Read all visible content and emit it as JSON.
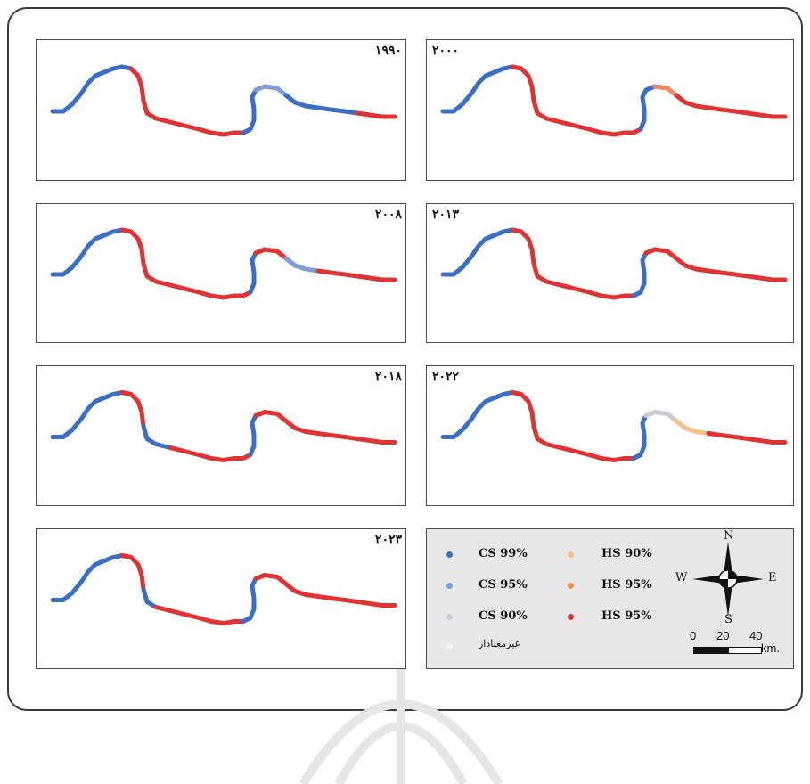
{
  "panels": [
    {
      "year": "۱۹۹۰",
      "id": "p1990"
    },
    {
      "year": "۲۰۰۰",
      "id": "p2000"
    },
    {
      "year": "۲۰۰۸",
      "id": "p2008"
    },
    {
      "year": "۲۰۱۳",
      "id": "p2013"
    },
    {
      "year": "۲۰۱۸",
      "id": "p2018"
    },
    {
      "year": "۲۰۲۲",
      "id": "p2022"
    },
    {
      "year": "۲۰۲۳",
      "id": "p2023"
    }
  ],
  "legend": {
    "cs99": "CS 99%",
    "cs95": "CS 95%",
    "cs90": "CS 90%",
    "hs90": "HS 90%",
    "hs95a": "HS 95%",
    "hs95b": "HS 95%",
    "nonsig": "غیرمعنادار"
  },
  "colors": {
    "cs99": "#3a6fc4",
    "cs95": "#7b9fd6",
    "cs90": "#c9ccd2",
    "hs90": "#f5c08a",
    "hs95": "#f08a5a",
    "hs99": "#e03434",
    "nonsig": "#f4f4f4"
  },
  "compass": {
    "n": "N",
    "s": "S",
    "e": "E",
    "w": "W"
  },
  "scale": {
    "ticks": [
      "0",
      "20",
      "40"
    ],
    "unit": "km."
  }
}
